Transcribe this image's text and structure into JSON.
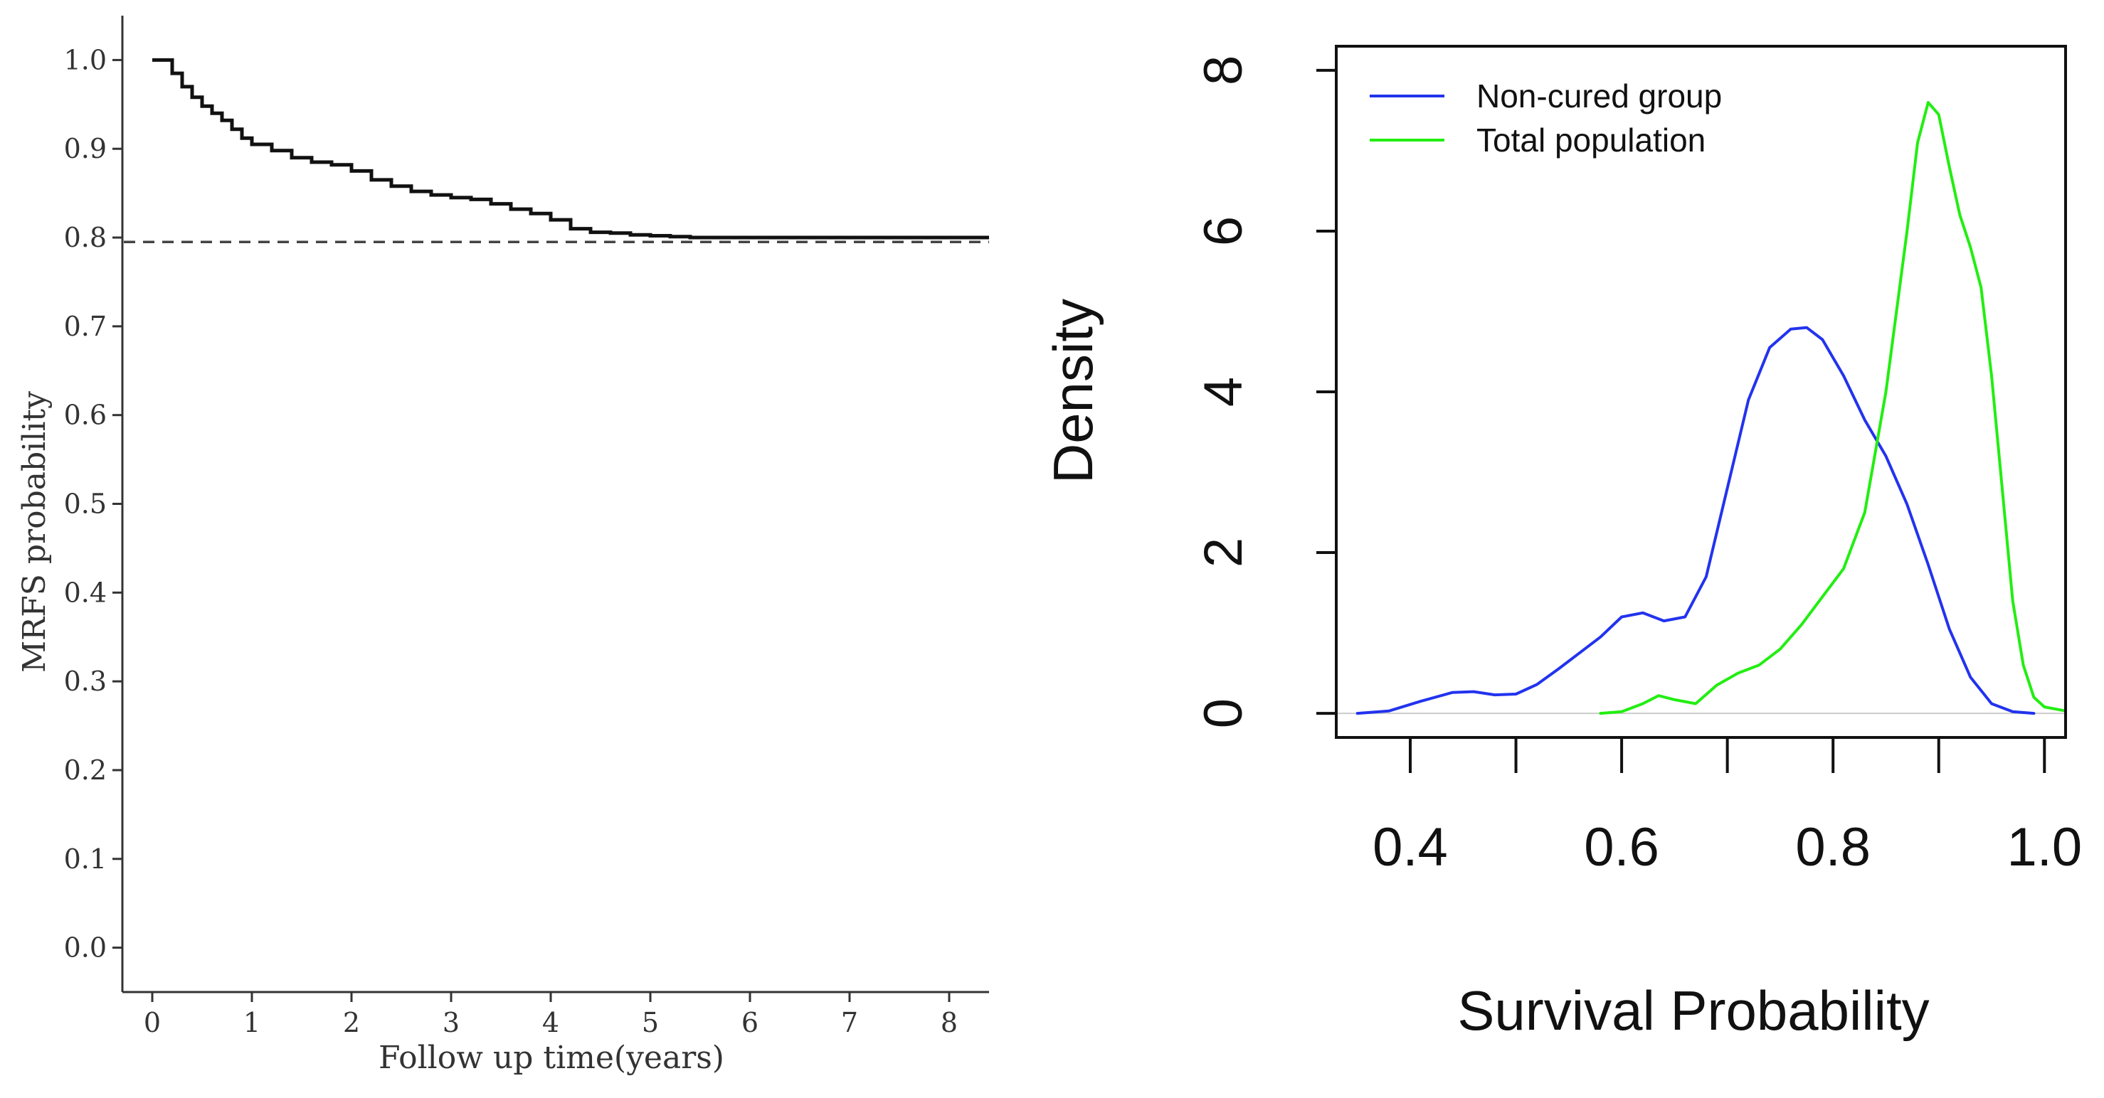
{
  "chart_data": [
    {
      "type": "line",
      "title": "",
      "xlabel": "Follow up time(years)",
      "ylabel": "MRFS probability",
      "xlim": [
        -0.3,
        8.4
      ],
      "ylim": [
        -0.05,
        1.05
      ],
      "xticks": [
        0,
        1,
        2,
        3,
        4,
        5,
        6,
        7,
        8
      ],
      "xtick_labels": [
        "0",
        "1",
        "2",
        "3",
        "4",
        "5",
        "6",
        "7",
        "8"
      ],
      "yticks": [
        0.0,
        0.1,
        0.2,
        0.3,
        0.4,
        0.5,
        0.6,
        0.7,
        0.8,
        0.9,
        1.0
      ],
      "ytick_labels": [
        "0.0",
        "0.1",
        "0.2",
        "0.3",
        "0.4",
        "0.5",
        "0.6",
        "0.7",
        "0.8",
        "0.9",
        "1.0"
      ],
      "reference_line": {
        "y": 0.795,
        "style": "dashed"
      },
      "grid": false,
      "series": [
        {
          "color": "#111111",
          "x": [
            0,
            0.1,
            0.2,
            0.3,
            0.4,
            0.5,
            0.6,
            0.7,
            0.8,
            0.9,
            1.0,
            1.2,
            1.4,
            1.6,
            1.8,
            2.0,
            2.2,
            2.4,
            2.6,
            2.8,
            3.0,
            3.2,
            3.4,
            3.6,
            3.8,
            4.0,
            4.2,
            4.4,
            4.6,
            4.8,
            5.0,
            5.2,
            5.4,
            5.6,
            6.0,
            6.5,
            7.0,
            7.5,
            8.0,
            8.4
          ],
          "y": [
            1.0,
            1.0,
            0.985,
            0.97,
            0.958,
            0.948,
            0.94,
            0.932,
            0.922,
            0.912,
            0.905,
            0.898,
            0.89,
            0.885,
            0.882,
            0.875,
            0.865,
            0.858,
            0.852,
            0.848,
            0.845,
            0.843,
            0.838,
            0.832,
            0.827,
            0.82,
            0.81,
            0.806,
            0.805,
            0.803,
            0.802,
            0.801,
            0.8,
            0.8,
            0.8,
            0.8,
            0.8,
            0.8,
            0.8,
            0.8
          ]
        }
      ]
    },
    {
      "type": "line",
      "title": "",
      "xlabel": "Survival Probability",
      "ylabel": "Density",
      "xlim": [
        0.33,
        1.02
      ],
      "ylim": [
        -0.3,
        8.3
      ],
      "xticks": [
        0.4,
        0.5,
        0.6,
        0.7,
        0.8,
        0.9,
        1.0
      ],
      "xtick_labels": [
        "0.4",
        "",
        "0.6",
        "",
        "0.8",
        "",
        "1.0"
      ],
      "yticks": [
        0,
        2,
        4,
        6,
        8
      ],
      "ytick_labels": [
        "0",
        "2",
        "4",
        "6",
        "8"
      ],
      "baseline": 0,
      "legend_position": "top-left",
      "grid": false,
      "series": [
        {
          "name": "Non-cured group",
          "color": "#2233ee",
          "x": [
            0.35,
            0.38,
            0.41,
            0.44,
            0.46,
            0.48,
            0.5,
            0.52,
            0.54,
            0.56,
            0.58,
            0.6,
            0.62,
            0.64,
            0.66,
            0.68,
            0.7,
            0.72,
            0.74,
            0.76,
            0.775,
            0.79,
            0.81,
            0.83,
            0.85,
            0.87,
            0.89,
            0.91,
            0.93,
            0.95,
            0.97,
            0.99
          ],
          "y": [
            0.0,
            0.03,
            0.15,
            0.26,
            0.27,
            0.23,
            0.24,
            0.36,
            0.55,
            0.75,
            0.95,
            1.2,
            1.25,
            1.15,
            1.2,
            1.7,
            2.8,
            3.9,
            4.55,
            4.78,
            4.8,
            4.65,
            4.2,
            3.65,
            3.2,
            2.6,
            1.85,
            1.05,
            0.45,
            0.12,
            0.02,
            0.0
          ]
        },
        {
          "name": "Total population",
          "color": "#22ee11",
          "x": [
            0.58,
            0.6,
            0.62,
            0.635,
            0.65,
            0.67,
            0.69,
            0.71,
            0.73,
            0.75,
            0.77,
            0.79,
            0.81,
            0.83,
            0.85,
            0.87,
            0.88,
            0.89,
            0.9,
            0.91,
            0.92,
            0.93,
            0.94,
            0.95,
            0.96,
            0.97,
            0.98,
            0.99,
            1.0,
            1.02
          ],
          "y": [
            0.0,
            0.02,
            0.12,
            0.22,
            0.17,
            0.12,
            0.35,
            0.5,
            0.6,
            0.8,
            1.1,
            1.45,
            1.8,
            2.5,
            4.0,
            6.0,
            7.1,
            7.6,
            7.45,
            6.8,
            6.2,
            5.8,
            5.3,
            4.2,
            2.8,
            1.4,
            0.6,
            0.2,
            0.08,
            0.03
          ]
        }
      ]
    }
  ]
}
